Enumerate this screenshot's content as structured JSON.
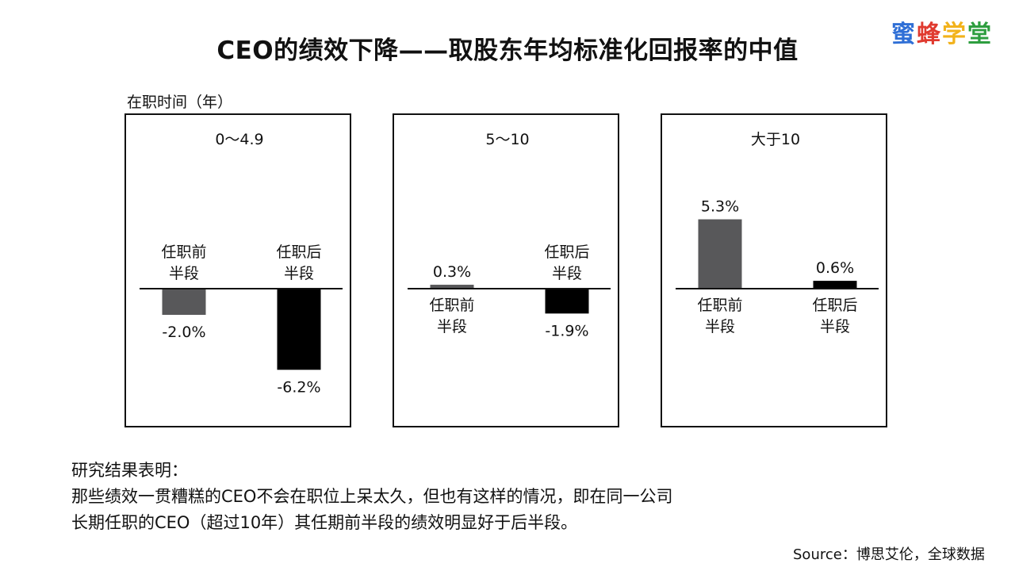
{
  "title": "CEO的绩效下降——取股东年均标准化回报率的中值",
  "logo": {
    "chars": [
      "蜜",
      "蜂",
      "学",
      "堂"
    ],
    "colors": [
      "#2f6fd6",
      "#e03a2f",
      "#f2b21b",
      "#2e9e3f"
    ]
  },
  "tenure_label": "在职时间（年）",
  "findings": {
    "heading": "研究结果表明：",
    "line1": "那些绩效一贯糟糕的CEO不会在职位上呆太久，但也有这样的情况，即在同一公司",
    "line2": "长期任职的CEO（超过10年）其任期前半段的绩效明显好于后半段。"
  },
  "source": "Source：博思艾伦，全球数据",
  "colors": {
    "first_half": "#58585a",
    "second_half": "#000000"
  },
  "chart_data": [
    {
      "type": "bar",
      "title": "0～4.9",
      "categories": [
        "任职前半段",
        "任职后半段"
      ],
      "category_lines": [
        [
          "任职前",
          "半段"
        ],
        [
          "任职后",
          "半段"
        ]
      ],
      "values": [
        -2.0,
        -6.2
      ],
      "value_labels": [
        "-2.0%",
        "-6.2%"
      ],
      "unit": "%"
    },
    {
      "type": "bar",
      "title": "5～10",
      "categories": [
        "任职前半段",
        "任职后半段"
      ],
      "category_lines": [
        [
          "任职前",
          "半段"
        ],
        [
          "任职后",
          "半段"
        ]
      ],
      "values": [
        0.3,
        -1.9
      ],
      "value_labels": [
        "0.3%",
        "-1.9%"
      ],
      "unit": "%"
    },
    {
      "type": "bar",
      "title": "大于10",
      "categories": [
        "任职前半段",
        "任职后半段"
      ],
      "category_lines": [
        [
          "任职前",
          "半段"
        ],
        [
          "任职后",
          "半段"
        ]
      ],
      "values": [
        5.3,
        0.6
      ],
      "value_labels": [
        "5.3%",
        "0.6%"
      ],
      "unit": "%"
    }
  ]
}
